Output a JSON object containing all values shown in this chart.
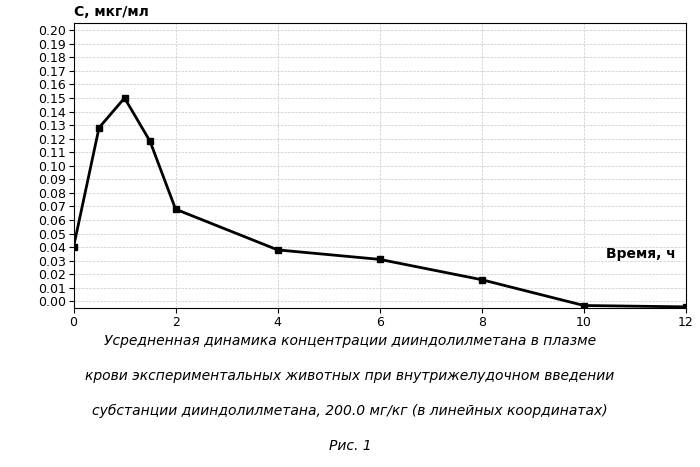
{
  "x": [
    0,
    0.5,
    1,
    1.5,
    2,
    4,
    6,
    8,
    10,
    12
  ],
  "y": [
    0.04,
    0.128,
    0.15,
    0.118,
    0.068,
    0.038,
    0.031,
    0.016,
    -0.003,
    -0.004
  ],
  "xlim": [
    0,
    12
  ],
  "ylim": [
    -0.005,
    0.205
  ],
  "yticks": [
    0.0,
    0.01,
    0.02,
    0.03,
    0.04,
    0.05,
    0.06,
    0.07,
    0.08,
    0.09,
    0.1,
    0.11,
    0.12,
    0.13,
    0.14,
    0.15,
    0.16,
    0.17,
    0.18,
    0.19,
    0.2
  ],
  "xticks": [
    0,
    2,
    4,
    6,
    8,
    10,
    12
  ],
  "ylabel": "С, мкг/мл",
  "xlabel_annotation": "Время, ч",
  "caption_line1": "Усредненная динамика концентрации дииндолилметана в плазме",
  "caption_line2": "крови экспериментальных животных при внутрижелудочном введении",
  "caption_line3": "субстанции дииндолилметана, 200.0 мг/кг (в линейных координатах)",
  "figure_label": "Рис. 1",
  "line_color": "#000000",
  "marker": "s",
  "marker_size": 5,
  "line_width": 2.0,
  "background_color": "#ffffff",
  "grid_color": "#c8c8c8",
  "font_size_ticks": 9,
  "font_size_ylabel": 10,
  "font_size_annotation": 10,
  "font_size_caption": 10,
  "font_size_figure_label": 10
}
